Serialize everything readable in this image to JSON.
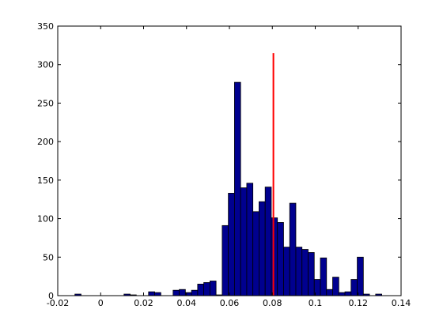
{
  "chart_data": {
    "type": "histogram",
    "bins": [
      -0.012,
      -0.00914,
      -0.00628,
      -0.00342,
      -0.00056,
      0.0023,
      0.00516,
      0.00802,
      0.01088,
      0.01374,
      0.0166,
      0.01946,
      0.02232,
      0.02518,
      0.02804,
      0.0309,
      0.03376,
      0.03662,
      0.03948,
      0.04234,
      0.0452,
      0.04806,
      0.05092,
      0.05378,
      0.05664,
      0.0595,
      0.06236,
      0.06522,
      0.06808,
      0.07094,
      0.0738,
      0.07666,
      0.07952,
      0.08238,
      0.08524,
      0.0881,
      0.09096,
      0.09382,
      0.09668,
      0.09954,
      0.1024,
      0.10526,
      0.10812,
      0.11098,
      0.11384,
      0.1167,
      0.11956,
      0.12242,
      0.12528,
      0.12814,
      0.131
    ],
    "values": [
      2,
      0,
      0,
      0,
      0,
      0,
      0,
      0,
      2,
      1,
      0,
      0,
      5,
      4,
      0,
      0,
      7,
      8,
      4,
      7,
      15,
      17,
      19,
      1,
      91,
      133,
      277,
      140,
      146,
      109,
      122,
      141,
      101,
      95,
      63,
      120,
      63,
      60,
      56,
      21,
      49,
      8,
      24,
      4,
      5,
      21,
      50,
      2,
      0,
      2
    ],
    "color": "#00008f",
    "vline": {
      "x": 0.0805,
      "ymax": 315,
      "color": "#ff0000"
    },
    "xlim": [
      -0.02,
      0.14
    ],
    "xticks": [
      -0.02,
      0,
      0.02,
      0.04,
      0.06,
      0.08,
      0.1,
      0.12,
      0.14
    ],
    "ylim": [
      0,
      350
    ],
    "yticks": [
      0,
      50,
      100,
      150,
      200,
      250,
      300,
      350
    ]
  }
}
